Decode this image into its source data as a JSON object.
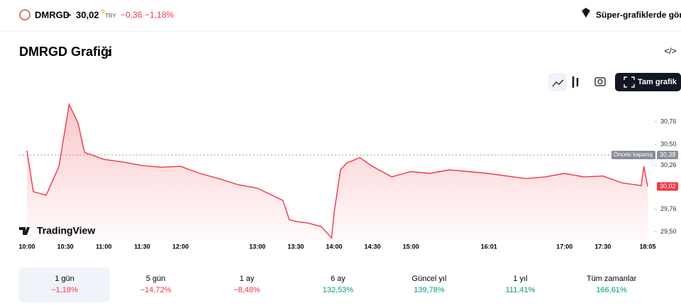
{
  "header": {
    "symbol": "DMRGD",
    "price": "30,02",
    "currency": "TRY",
    "change": "−0,36",
    "change_pct": "−1,18%",
    "super_charts": "Süper-grafiklerde görün"
  },
  "chart_title": "DMRGD Grafiği",
  "full_chart_button": "Tam grafik",
  "chart_data": {
    "type": "area",
    "color": "#f23645",
    "watermark": "TradingView",
    "x": [
      "10:00",
      "10:05",
      "10:15",
      "10:25",
      "10:33",
      "10:40",
      "10:45",
      "11:00",
      "11:15",
      "11:30",
      "11:45",
      "12:00",
      "12:15",
      "12:30",
      "12:45",
      "13:00",
      "13:20",
      "13:25",
      "13:30",
      "13:40",
      "13:50",
      "13:58",
      "14:00",
      "14:05",
      "14:10",
      "14:20",
      "14:30",
      "14:45",
      "15:00",
      "15:15",
      "15:30",
      "15:45",
      "16:00",
      "16:15",
      "16:30",
      "16:45",
      "17:00",
      "17:15",
      "17:30",
      "17:45",
      "18:00",
      "18:02",
      "18:05"
    ],
    "values": [
      30.43,
      29.96,
      29.92,
      30.25,
      30.96,
      30.74,
      30.41,
      30.33,
      30.3,
      30.26,
      30.24,
      30.25,
      30.17,
      30.11,
      30.04,
      30.0,
      29.86,
      29.64,
      29.62,
      29.6,
      29.56,
      29.43,
      29.72,
      30.21,
      30.29,
      30.35,
      30.25,
      30.13,
      30.19,
      30.17,
      30.21,
      30.19,
      30.17,
      30.14,
      30.11,
      30.13,
      30.17,
      30.13,
      30.14,
      30.06,
      30.03,
      30.25,
      30.02
    ],
    "xlim": [
      "10:00",
      "18:05"
    ],
    "xticks": [
      "10:00",
      "10:30",
      "11:00",
      "11:30",
      "12:00",
      "13:00",
      "13:30",
      "14:00",
      "14:30",
      "15:00",
      "16:01",
      "17:00",
      "17:30",
      "18:05"
    ],
    "ylim": [
      29.4,
      30.98
    ],
    "yticks": [
      {
        "value": 29.5,
        "label": "29,50"
      },
      {
        "value": 29.76,
        "label": "29,76"
      },
      {
        "value": 30.26,
        "label": "30,26"
      },
      {
        "value": 30.5,
        "label": "30,50"
      },
      {
        "value": 30.76,
        "label": "30,76"
      }
    ],
    "previous_close": {
      "name": "Önceki kapanış",
      "value": 30.38,
      "label": "30,38"
    },
    "last": {
      "value": 30.02,
      "label": "30,02"
    }
  },
  "periods": [
    {
      "label": "1 gün",
      "change": "−1,18%"
    },
    {
      "label": "5 gün",
      "change": "−14,72%"
    },
    {
      "label": "1 ay",
      "change": "−8,48%"
    },
    {
      "label": "6 ay",
      "change": "132,53%"
    },
    {
      "label": "Güncel yıl",
      "change": "139,78%"
    },
    {
      "label": "1 yıl",
      "change": "111,41%"
    },
    {
      "label": "Tüm zamanlar",
      "change": "166,61%"
    }
  ]
}
